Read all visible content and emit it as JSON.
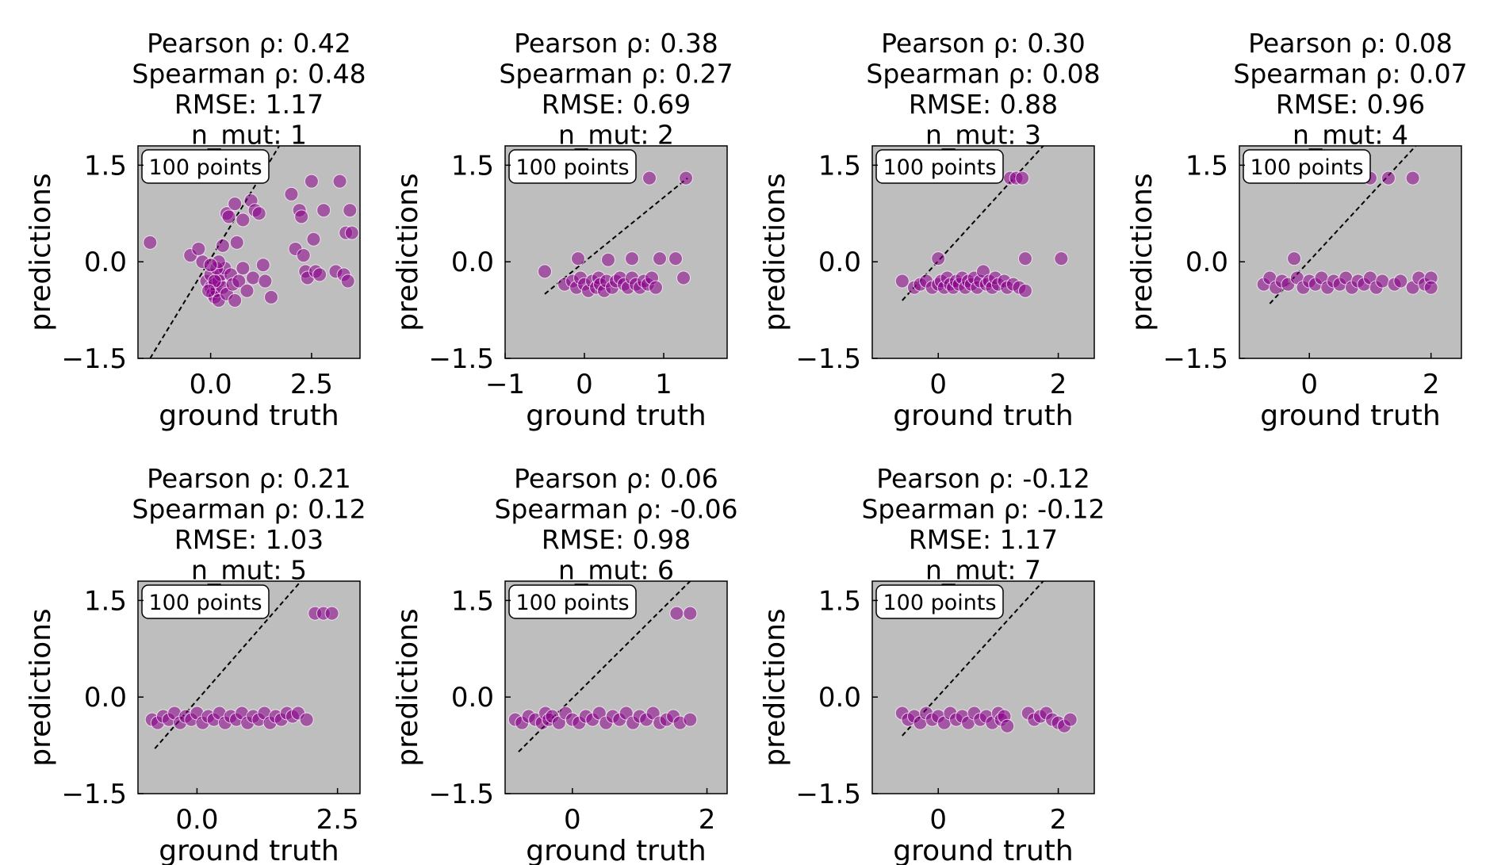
{
  "chart_data": [
    {
      "type": "scatter",
      "title": [
        "Pearson ρ: 0.42",
        "Spearman ρ: 0.48",
        "RMSE: 1.17",
        "n_mut: 1"
      ],
      "annotation": "100 points",
      "xlabel": "ground truth",
      "ylabel": "predictions",
      "xlim": [
        -1.8,
        3.7
      ],
      "ylim": [
        -1.5,
        1.8
      ],
      "xticks": [
        {
          "v": 0.0,
          "label": "0.0"
        },
        {
          "v": 2.5,
          "label": "2.5"
        }
      ],
      "yticks": [
        {
          "v": 1.5,
          "label": "1.5"
        },
        {
          "v": 0.0,
          "label": "0.0"
        },
        {
          "v": -1.5,
          "label": "−1.5"
        }
      ],
      "diagonal": [
        [
          -1.5,
          -1.5
        ],
        [
          1.7,
          1.8
        ]
      ],
      "points": [
        [
          -1.5,
          0.3
        ],
        [
          -0.5,
          0.1
        ],
        [
          -0.3,
          0.2
        ],
        [
          -0.2,
          0.0
        ],
        [
          -0.1,
          -0.3
        ],
        [
          0.0,
          -0.4
        ],
        [
          0.0,
          -0.2
        ],
        [
          0.05,
          -0.5
        ],
        [
          0.1,
          -0.35
        ],
        [
          0.1,
          -0.55
        ],
        [
          0.15,
          -0.45
        ],
        [
          0.2,
          -0.3
        ],
        [
          0.2,
          -0.6
        ],
        [
          0.25,
          -0.2
        ],
        [
          0.3,
          -0.4
        ],
        [
          0.3,
          0.25
        ],
        [
          0.35,
          -0.1
        ],
        [
          0.4,
          -0.5
        ],
        [
          0.4,
          0.75
        ],
        [
          0.45,
          0.7
        ],
        [
          0.5,
          -0.2
        ],
        [
          0.55,
          -0.35
        ],
        [
          0.6,
          0.9
        ],
        [
          0.6,
          -0.6
        ],
        [
          0.65,
          0.3
        ],
        [
          0.7,
          -0.3
        ],
        [
          0.8,
          0.65
        ],
        [
          0.8,
          -0.1
        ],
        [
          0.9,
          -0.45
        ],
        [
          1.0,
          0.95
        ],
        [
          1.05,
          -0.25
        ],
        [
          1.1,
          0.8
        ],
        [
          1.2,
          0.75
        ],
        [
          1.3,
          -0.05
        ],
        [
          1.35,
          -0.3
        ],
        [
          1.5,
          -0.55
        ],
        [
          2.0,
          1.05
        ],
        [
          2.1,
          0.2
        ],
        [
          2.2,
          0.8
        ],
        [
          2.25,
          0.7
        ],
        [
          2.3,
          0.1
        ],
        [
          2.35,
          -0.15
        ],
        [
          2.4,
          -0.25
        ],
        [
          2.5,
          1.25
        ],
        [
          2.55,
          0.35
        ],
        [
          2.6,
          -0.15
        ],
        [
          2.7,
          -0.2
        ],
        [
          2.8,
          0.8
        ],
        [
          3.1,
          -0.15
        ],
        [
          3.2,
          1.25
        ],
        [
          3.3,
          -0.2
        ],
        [
          3.35,
          0.45
        ],
        [
          3.4,
          -0.3
        ],
        [
          3.45,
          0.8
        ],
        [
          3.5,
          0.45
        ],
        [
          0.1,
          -0.3
        ],
        [
          0.15,
          -0.1
        ],
        [
          0.2,
          0.0
        ],
        [
          0.0,
          -0.05
        ],
        [
          -0.05,
          -0.45
        ]
      ]
    },
    {
      "type": "scatter",
      "title": [
        "Pearson ρ: 0.38",
        "Spearman ρ: 0.27",
        "RMSE: 0.69",
        "n_mut: 2"
      ],
      "annotation": "100 points",
      "xlabel": "ground truth",
      "ylabel": "predictions",
      "xlim": [
        -1.0,
        1.8
      ],
      "ylim": [
        -1.5,
        1.8
      ],
      "xticks": [
        {
          "v": -1,
          "label": "−1"
        },
        {
          "v": 0,
          "label": "0"
        },
        {
          "v": 1,
          "label": "1"
        }
      ],
      "yticks": [
        {
          "v": 1.5,
          "label": "1.5"
        },
        {
          "v": 0.0,
          "label": "0.0"
        },
        {
          "v": -1.5,
          "label": "−1.5"
        }
      ],
      "diagonal": [
        [
          -0.5,
          -0.5
        ],
        [
          1.3,
          1.3
        ]
      ],
      "points": [
        [
          -0.5,
          -0.15
        ],
        [
          -0.25,
          -0.35
        ],
        [
          -0.15,
          -0.3
        ],
        [
          -0.1,
          -0.4
        ],
        [
          -0.08,
          0.05
        ],
        [
          -0.05,
          -0.25
        ],
        [
          0.0,
          -0.35
        ],
        [
          0.05,
          -0.45
        ],
        [
          0.1,
          -0.3
        ],
        [
          0.15,
          -0.4
        ],
        [
          0.18,
          -0.25
        ],
        [
          0.2,
          -0.35
        ],
        [
          0.25,
          -0.45
        ],
        [
          0.28,
          -0.3
        ],
        [
          0.3,
          0.03
        ],
        [
          0.35,
          -0.4
        ],
        [
          0.4,
          -0.3
        ],
        [
          0.45,
          -0.25
        ],
        [
          0.5,
          -0.35
        ],
        [
          0.55,
          -0.4
        ],
        [
          0.6,
          -0.25
        ],
        [
          0.6,
          0.05
        ],
        [
          0.65,
          -0.35
        ],
        [
          0.7,
          -0.4
        ],
        [
          0.75,
          -0.3
        ],
        [
          0.8,
          -0.35
        ],
        [
          0.82,
          1.3
        ],
        [
          0.85,
          -0.25
        ],
        [
          0.9,
          -0.4
        ],
        [
          0.95,
          0.05
        ],
        [
          1.15,
          0.05
        ],
        [
          1.25,
          -0.25
        ],
        [
          1.28,
          1.3
        ]
      ]
    },
    {
      "type": "scatter",
      "title": [
        "Pearson ρ: 0.30",
        "Spearman ρ: 0.08",
        "RMSE: 0.88",
        "n_mut: 3"
      ],
      "annotation": "100 points",
      "xlabel": "ground truth",
      "ylabel": "predictions",
      "xlim": [
        -1.1,
        2.6
      ],
      "ylim": [
        -1.5,
        1.8
      ],
      "xticks": [
        {
          "v": 0,
          "label": "0"
        },
        {
          "v": 2,
          "label": "2"
        }
      ],
      "yticks": [
        {
          "v": 1.5,
          "label": "1.5"
        },
        {
          "v": 0.0,
          "label": "0.0"
        },
        {
          "v": -1.5,
          "label": "−1.5"
        }
      ],
      "diagonal": [
        [
          -0.6,
          -0.6
        ],
        [
          1.75,
          1.8
        ]
      ],
      "points": [
        [
          -0.6,
          -0.3
        ],
        [
          -0.4,
          -0.4
        ],
        [
          -0.3,
          -0.35
        ],
        [
          -0.2,
          -0.3
        ],
        [
          -0.1,
          -0.4
        ],
        [
          0.0,
          0.05
        ],
        [
          0.0,
          -0.35
        ],
        [
          0.05,
          -0.3
        ],
        [
          0.1,
          -0.4
        ],
        [
          0.15,
          -0.25
        ],
        [
          0.2,
          -0.35
        ],
        [
          0.25,
          -0.4
        ],
        [
          0.3,
          -0.3
        ],
        [
          0.35,
          -0.35
        ],
        [
          0.4,
          -0.25
        ],
        [
          0.45,
          -0.4
        ],
        [
          0.5,
          -0.3
        ],
        [
          0.55,
          -0.35
        ],
        [
          0.6,
          -0.25
        ],
        [
          0.65,
          -0.4
        ],
        [
          0.7,
          -0.3
        ],
        [
          0.75,
          -0.15
        ],
        [
          0.8,
          -0.35
        ],
        [
          0.85,
          -0.3
        ],
        [
          0.9,
          -0.4
        ],
        [
          0.95,
          -0.25
        ],
        [
          1.0,
          -0.35
        ],
        [
          1.1,
          -0.3
        ],
        [
          1.15,
          -0.4
        ],
        [
          1.2,
          1.3
        ],
        [
          1.25,
          -0.35
        ],
        [
          1.3,
          1.3
        ],
        [
          1.35,
          -0.4
        ],
        [
          1.4,
          1.3
        ],
        [
          1.45,
          -0.45
        ],
        [
          1.45,
          0.05
        ],
        [
          2.05,
          0.05
        ]
      ]
    },
    {
      "type": "scatter",
      "title": [
        "Pearson ρ: 0.08",
        "Spearman ρ: 0.07",
        "RMSE: 0.96",
        "n_mut: 4"
      ],
      "annotation": "100 points",
      "xlabel": "ground truth",
      "ylabel": "predictions",
      "xlim": [
        -1.15,
        2.5
      ],
      "ylim": [
        -1.5,
        1.8
      ],
      "xticks": [
        {
          "v": 0,
          "label": "0"
        },
        {
          "v": 2,
          "label": "2"
        }
      ],
      "yticks": [
        {
          "v": 1.5,
          "label": "1.5"
        },
        {
          "v": 0.0,
          "label": "0.0"
        },
        {
          "v": -1.5,
          "label": "−1.5"
        }
      ],
      "diagonal": [
        [
          -0.65,
          -0.65
        ],
        [
          1.75,
          1.8
        ]
      ],
      "points": [
        [
          -0.75,
          -0.35
        ],
        [
          -0.65,
          -0.25
        ],
        [
          -0.55,
          -0.4
        ],
        [
          -0.45,
          -0.3
        ],
        [
          -0.35,
          -0.35
        ],
        [
          -0.25,
          0.05
        ],
        [
          -0.2,
          -0.25
        ],
        [
          -0.1,
          -0.4
        ],
        [
          0.0,
          -0.3
        ],
        [
          0.1,
          -0.35
        ],
        [
          0.2,
          -0.25
        ],
        [
          0.3,
          -0.4
        ],
        [
          0.4,
          -0.3
        ],
        [
          0.5,
          -0.35
        ],
        [
          0.6,
          -0.25
        ],
        [
          0.7,
          -0.4
        ],
        [
          0.8,
          -0.3
        ],
        [
          0.9,
          -0.35
        ],
        [
          1.0,
          -0.25
        ],
        [
          1.0,
          1.3
        ],
        [
          1.1,
          -0.4
        ],
        [
          1.2,
          -0.3
        ],
        [
          1.3,
          1.3
        ],
        [
          1.4,
          -0.35
        ],
        [
          1.5,
          -0.3
        ],
        [
          1.7,
          1.3
        ],
        [
          1.7,
          -0.4
        ],
        [
          1.8,
          -0.25
        ],
        [
          1.9,
          -0.35
        ],
        [
          2.0,
          -0.25
        ],
        [
          2.0,
          -0.4
        ]
      ]
    },
    {
      "type": "scatter",
      "title": [
        "Pearson ρ: 0.21",
        "Spearman ρ: 0.12",
        "RMSE: 1.03",
        "n_mut: 5"
      ],
      "annotation": "100 points",
      "xlabel": "ground truth",
      "ylabel": "predictions",
      "xlim": [
        -1.05,
        2.9
      ],
      "ylim": [
        -1.5,
        1.8
      ],
      "xticks": [
        {
          "v": 0.0,
          "label": "0.0"
        },
        {
          "v": 2.5,
          "label": "2.5"
        }
      ],
      "yticks": [
        {
          "v": 1.5,
          "label": "1.5"
        },
        {
          "v": 0.0,
          "label": "0.0"
        },
        {
          "v": -1.5,
          "label": "−1.5"
        }
      ],
      "diagonal": [
        [
          -0.75,
          -0.8
        ],
        [
          1.85,
          1.8
        ]
      ],
      "points": [
        [
          -0.8,
          -0.35
        ],
        [
          -0.7,
          -0.4
        ],
        [
          -0.6,
          -0.3
        ],
        [
          -0.5,
          -0.35
        ],
        [
          -0.4,
          -0.25
        ],
        [
          -0.3,
          -0.4
        ],
        [
          -0.2,
          -0.3
        ],
        [
          -0.1,
          -0.35
        ],
        [
          0.0,
          -0.25
        ],
        [
          0.1,
          -0.4
        ],
        [
          0.2,
          -0.3
        ],
        [
          0.3,
          -0.35
        ],
        [
          0.4,
          -0.25
        ],
        [
          0.5,
          -0.4
        ],
        [
          0.6,
          -0.3
        ],
        [
          0.7,
          -0.35
        ],
        [
          0.8,
          -0.25
        ],
        [
          0.9,
          -0.4
        ],
        [
          1.0,
          -0.3
        ],
        [
          1.1,
          -0.35
        ],
        [
          1.2,
          -0.25
        ],
        [
          1.3,
          -0.4
        ],
        [
          1.4,
          -0.3
        ],
        [
          1.5,
          -0.35
        ],
        [
          1.6,
          -0.25
        ],
        [
          1.7,
          -0.3
        ],
        [
          1.8,
          -0.25
        ],
        [
          1.95,
          -0.35
        ],
        [
          2.1,
          1.3
        ],
        [
          2.25,
          1.3
        ],
        [
          2.4,
          1.3
        ]
      ]
    },
    {
      "type": "scatter",
      "title": [
        "Pearson ρ: 0.06",
        "Spearman ρ: -0.06",
        "RMSE: 0.98",
        "n_mut: 6"
      ],
      "annotation": "100 points",
      "xlabel": "ground truth",
      "ylabel": "predictions",
      "xlim": [
        -1.0,
        2.3
      ],
      "ylim": [
        -1.5,
        1.8
      ],
      "xticks": [
        {
          "v": 0,
          "label": "0"
        },
        {
          "v": 2,
          "label": "2"
        }
      ],
      "yticks": [
        {
          "v": 1.5,
          "label": "1.5"
        },
        {
          "v": 0.0,
          "label": "0.0"
        },
        {
          "v": -1.5,
          "label": "−1.5"
        }
      ],
      "diagonal": [
        [
          -0.8,
          -0.85
        ],
        [
          1.75,
          1.8
        ]
      ],
      "points": [
        [
          -0.85,
          -0.35
        ],
        [
          -0.75,
          -0.4
        ],
        [
          -0.65,
          -0.3
        ],
        [
          -0.55,
          -0.35
        ],
        [
          -0.45,
          -0.4
        ],
        [
          -0.4,
          -0.25
        ],
        [
          -0.35,
          -0.35
        ],
        [
          -0.3,
          -0.3
        ],
        [
          -0.2,
          -0.4
        ],
        [
          -0.1,
          -0.25
        ],
        [
          0.0,
          -0.35
        ],
        [
          0.1,
          -0.4
        ],
        [
          0.2,
          -0.3
        ],
        [
          0.3,
          -0.35
        ],
        [
          0.4,
          -0.25
        ],
        [
          0.5,
          -0.4
        ],
        [
          0.6,
          -0.3
        ],
        [
          0.7,
          -0.35
        ],
        [
          0.8,
          -0.25
        ],
        [
          0.9,
          -0.4
        ],
        [
          1.0,
          -0.3
        ],
        [
          1.1,
          -0.35
        ],
        [
          1.2,
          -0.25
        ],
        [
          1.3,
          -0.4
        ],
        [
          1.4,
          -0.35
        ],
        [
          1.5,
          -0.3
        ],
        [
          1.55,
          1.3
        ],
        [
          1.6,
          -0.4
        ],
        [
          1.75,
          1.3
        ],
        [
          1.75,
          -0.35
        ]
      ]
    },
    {
      "type": "scatter",
      "title": [
        "Pearson ρ: -0.12",
        "Spearman ρ: -0.12",
        "RMSE: 1.17",
        "n_mut: 7"
      ],
      "annotation": "100 points",
      "xlabel": "ground truth",
      "ylabel": "predictions",
      "xlim": [
        -1.1,
        2.6
      ],
      "ylim": [
        -1.5,
        1.8
      ],
      "xticks": [
        {
          "v": 0,
          "label": "0"
        },
        {
          "v": 2,
          "label": "2"
        }
      ],
      "yticks": [
        {
          "v": 1.5,
          "label": "1.5"
        },
        {
          "v": 0.0,
          "label": "0.0"
        },
        {
          "v": -1.5,
          "label": "−1.5"
        }
      ],
      "diagonal": [
        [
          -0.6,
          -0.6
        ],
        [
          1.75,
          1.8
        ]
      ],
      "points": [
        [
          -0.6,
          -0.25
        ],
        [
          -0.5,
          -0.35
        ],
        [
          -0.4,
          -0.3
        ],
        [
          -0.3,
          -0.4
        ],
        [
          -0.2,
          -0.25
        ],
        [
          -0.1,
          -0.35
        ],
        [
          0.0,
          -0.3
        ],
        [
          0.1,
          -0.4
        ],
        [
          0.2,
          -0.25
        ],
        [
          0.3,
          -0.35
        ],
        [
          0.4,
          -0.3
        ],
        [
          0.5,
          -0.4
        ],
        [
          0.6,
          -0.25
        ],
        [
          0.7,
          -0.35
        ],
        [
          0.8,
          -0.3
        ],
        [
          0.9,
          -0.4
        ],
        [
          1.0,
          -0.25
        ],
        [
          1.05,
          -0.35
        ],
        [
          1.1,
          -0.3
        ],
        [
          1.15,
          -0.45
        ],
        [
          1.5,
          -0.25
        ],
        [
          1.6,
          -0.35
        ],
        [
          1.7,
          -0.3
        ],
        [
          1.8,
          -0.25
        ],
        [
          1.9,
          -0.35
        ],
        [
          2.0,
          -0.4
        ],
        [
          2.1,
          -0.45
        ],
        [
          2.2,
          -0.35
        ]
      ]
    }
  ],
  "colors": {
    "plot_bg": "#bebebe",
    "point": "#8b008b",
    "diagonal": "#000000"
  }
}
